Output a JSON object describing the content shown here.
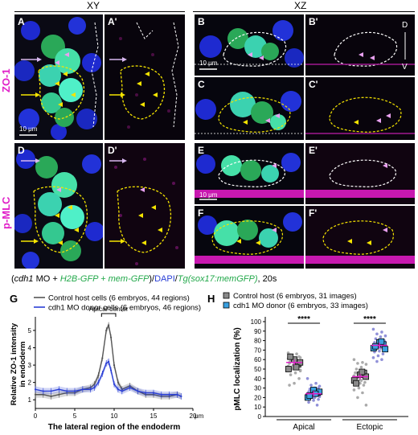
{
  "headers": {
    "xy": "XY",
    "xz": "XZ"
  },
  "row_labels": {
    "top": "ZO-1",
    "bottom": "p-MLC"
  },
  "panels": {
    "A": "A",
    "A_prime": "A'",
    "B": "B",
    "B_prime": "B'",
    "C": "C",
    "C_prime": "C'",
    "D": "D",
    "D_prime": "D'",
    "E": "E",
    "E_prime": "E'",
    "F": "F",
    "F_prime": "F'"
  },
  "scale_bars": {
    "A": "10 μm",
    "B": "10 μm",
    "E": "10 μm"
  },
  "orientation": {
    "d": "D",
    "v": "V"
  },
  "caption": {
    "p1": "(",
    "cdh1": "cdh1",
    "mo": " MO + ",
    "h2b": "H2B-GFP + mem-GFP",
    "slash1": ")/",
    "dapi": "DAPI",
    "slash2": "/",
    "tg": "Tg(sox17:memGFP)",
    "end": ", 20s"
  },
  "graph_labels": {
    "G": "G",
    "H": "H"
  },
  "colors": {
    "magenta": "#e020c8",
    "control": "#555555",
    "donor": "#2a3fd6",
    "mean_line": "#e020c8"
  },
  "chart_data": [
    {
      "type": "line",
      "panel": "G",
      "ylabel": "Relative ZO-1 intensity in endoderm",
      "xlabel": "The lateral region of the endoderm",
      "x_unit": "μm",
      "annotation": "Apical center",
      "xlim": [
        0,
        20
      ],
      "ylim": [
        0.5,
        5.6
      ],
      "xticks": [
        0,
        5,
        10,
        15,
        20
      ],
      "yticks": [
        1,
        2,
        3,
        4,
        5
      ],
      "legend": "top",
      "series": [
        {
          "name": "Control host cells (6 embryos, 44 regions)",
          "x": [
            0,
            1,
            2,
            3,
            4,
            5,
            6,
            7,
            7.5,
            8,
            8.5,
            9,
            9.3,
            9.6,
            10,
            10.5,
            11,
            12,
            13,
            14,
            15,
            16,
            17,
            18,
            18.5
          ],
          "y": [
            1.3,
            1.3,
            1.2,
            1.3,
            1.4,
            1.4,
            1.6,
            1.7,
            1.9,
            2.4,
            3.4,
            5.0,
            5.3,
            4.6,
            3.0,
            2.0,
            1.6,
            1.8,
            1.5,
            1.3,
            1.3,
            1.2,
            1.2,
            1.3,
            1.2
          ]
        },
        {
          "name": "cdh1 MO donor cells (6 embryos, 46 regions)",
          "x": [
            0,
            1,
            2,
            3,
            4,
            5,
            6,
            7,
            7.5,
            8,
            8.5,
            9,
            9.3,
            9.6,
            10,
            10.5,
            11,
            12,
            13,
            14,
            15,
            16,
            17,
            18,
            18.5
          ],
          "y": [
            1.6,
            1.5,
            1.5,
            1.6,
            1.5,
            1.5,
            1.6,
            1.6,
            1.7,
            2.0,
            2.5,
            3.1,
            3.2,
            2.7,
            1.9,
            1.6,
            1.5,
            1.7,
            1.5,
            1.4,
            1.4,
            1.3,
            1.3,
            1.3,
            1.2
          ]
        }
      ]
    },
    {
      "type": "scatter",
      "panel": "H",
      "ylabel": "pMLC localization (%)",
      "categories": [
        "Apical",
        "Ectopic"
      ],
      "ylim": [
        0,
        100
      ],
      "yticks": [
        0,
        10,
        20,
        30,
        40,
        50,
        60,
        70,
        80,
        90,
        100
      ],
      "significance": [
        "****",
        "****"
      ],
      "legend": "top",
      "series": [
        {
          "name": "Control host (6 embryos, 31 images)",
          "mean": [
            57,
            42
          ],
          "embryo_means": [
            [
              50,
              55,
              60,
              63,
              57,
              52
            ],
            [
              38,
              46,
              44,
              35,
              42,
              47
            ]
          ],
          "images": [
            [
              67,
              66,
              64,
              62,
              60,
              59,
              58,
              57,
              56,
              55,
              54,
              53,
              52,
              50,
              48,
              46,
              44,
              40,
              35,
              33,
              56,
              58,
              61,
              60,
              51,
              49,
              54,
              65,
              63,
              59,
              57
            ],
            [
              60,
              57,
              56,
              55,
              52,
              50,
              48,
              47,
              46,
              45,
              44,
              43,
              42,
              41,
              40,
              38,
              37,
              36,
              35,
              34,
              33,
              30,
              28,
              25,
              20,
              12,
              44,
              46,
              41,
              39,
              36
            ]
          ]
        },
        {
          "name": "cdh1 MO donor (6 embryos, 33 images)",
          "mean": [
            24,
            75
          ],
          "embryo_means": [
            [
              20,
              25,
              28,
              22,
              26,
              24
            ],
            [
              72,
              76,
              78,
              74,
              71,
              79
            ]
          ],
          "images": [
            [
              40,
              35,
              33,
              32,
              30,
              29,
              28,
              27,
              26,
              25,
              25,
              24,
              23,
              22,
              21,
              20,
              19,
              18,
              17,
              15,
              12,
              26,
              24,
              22,
              27,
              23,
              21,
              28,
              30,
              20,
              18,
              25,
              24
            ],
            [
              92,
              89,
              87,
              85,
              84,
              82,
              80,
              79,
              78,
              77,
              76,
              75,
              75,
              74,
              73,
              72,
              71,
              70,
              69,
              68,
              66,
              64,
              62,
              60,
              58,
              78,
              76,
              74,
              72,
              80,
              70,
              77,
              73
            ]
          ]
        }
      ]
    }
  ]
}
